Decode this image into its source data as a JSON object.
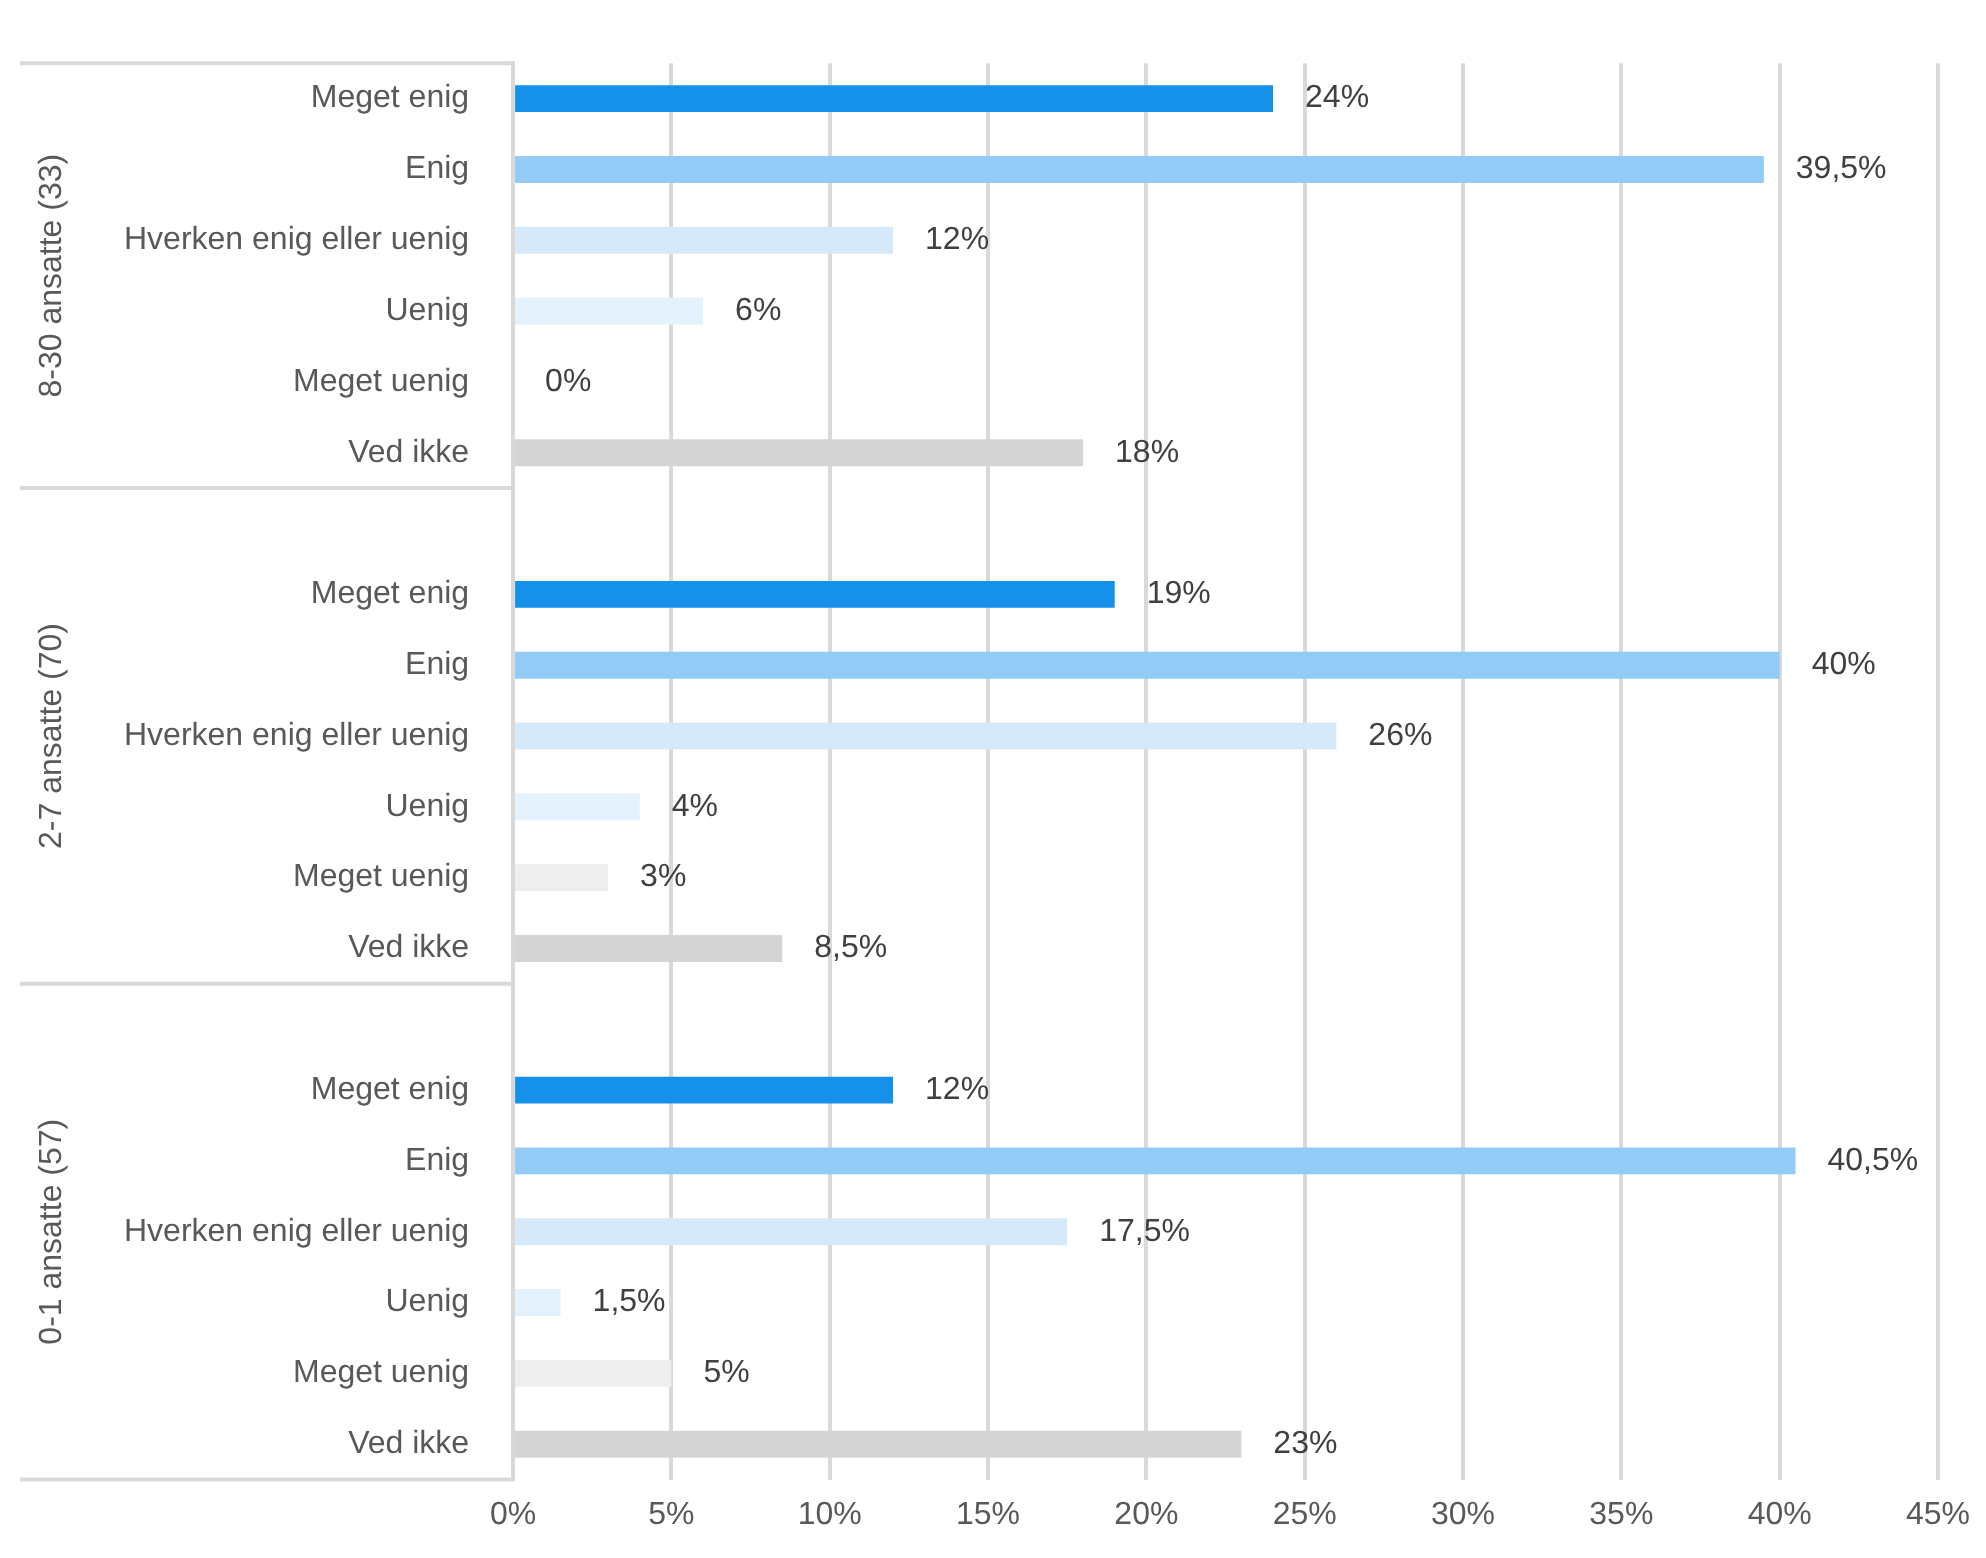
{
  "chart_data": {
    "type": "bar",
    "orientation": "horizontal",
    "categories": [
      "Meget enig",
      "Enig",
      "Hverken enig eller uenig",
      "Uenig",
      "Meget uenig",
      "Ved ikke",
      null,
      "Meget enig",
      "Enig",
      "Hverken enig eller uenig",
      "Uenig",
      "Meget uenig",
      "Ved ikke",
      null,
      "Meget enig",
      "Enig",
      "Hverken enig eller uenig",
      "Uenig",
      "Meget uenig",
      "Ved ikke"
    ],
    "values": [
      24,
      39.5,
      12,
      6,
      0,
      18,
      null,
      19,
      40,
      26,
      4,
      3,
      8.5,
      null,
      12,
      40.5,
      17.5,
      1.5,
      5,
      23
    ],
    "colors": [
      "#1591ea",
      "#92cbf5",
      "#d6e9f9",
      "#e3f2fc",
      "#eeeeee",
      "#d5d5d5",
      "#ffffff",
      "#1591ea",
      "#92cbf5",
      "#d6e9f9",
      "#e3f2fc",
      "#eeeeee",
      "#d5d5d5",
      "#ffffff",
      "#1591ea",
      "#92cbf5",
      "#d6e9f9",
      "#e3f2fc",
      "#eeeeee",
      "#d5d5d5"
    ],
    "value_labels": [
      "24%",
      "39,5%",
      "12%",
      "6%",
      "0%",
      "18%",
      null,
      "19%",
      "40%",
      "26%",
      "4%",
      "3%",
      "8,5%",
      null,
      "12%",
      "40,5%",
      "17,5%",
      "1,5%",
      "5%",
      "23%"
    ],
    "xlim": [
      0,
      45
    ],
    "xticks": [
      {
        "value": 0,
        "label": "0%"
      },
      {
        "value": 5,
        "label": "5%"
      },
      {
        "value": 10,
        "label": "10%"
      },
      {
        "value": 15,
        "label": "15%"
      },
      {
        "value": 20,
        "label": "20%"
      },
      {
        "value": 25,
        "label": "25%"
      },
      {
        "value": 30,
        "label": "30%"
      },
      {
        "value": 35,
        "label": "35%"
      },
      {
        "value": 40,
        "label": "40%"
      },
      {
        "value": 45,
        "label": "45%"
      }
    ],
    "annotations": [
      "8-30 ansatte (33)",
      "2-7 ansatte (70)",
      "0-1 ansatte (57)"
    ],
    "grid": "x",
    "legend": false
  }
}
